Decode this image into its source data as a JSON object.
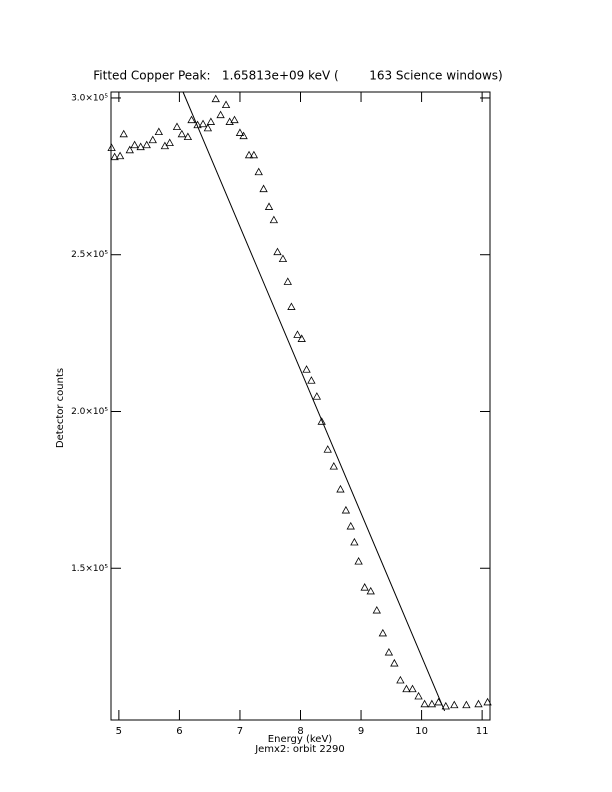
{
  "chart_data": {
    "type": "scatter",
    "title": "Fitted Copper Peak:   1.65813e+09 keV (        163 Science windows)",
    "xlabel": "Energy (keV)",
    "subtitle": "Jemx2: orbit 2290",
    "ylabel": "Detector counts",
    "xlim": [
      4.87,
      11.13
    ],
    "xticks": [
      5,
      6,
      7,
      8,
      9,
      10,
      11
    ],
    "ylim": [
      101600,
      301900
    ],
    "yticks": [
      {
        "value": 150000,
        "label": "1.5×10⁵"
      },
      {
        "value": 200000,
        "label": "2.0×10⁵"
      },
      {
        "value": 250000,
        "label": "2.5×10⁵"
      },
      {
        "value": 300000,
        "label": "3.0×10⁵"
      }
    ],
    "series": [
      {
        "type": "scatter",
        "marker": "triangle",
        "color": "#000000",
        "x": [
          4.88,
          4.93,
          5.02,
          5.08,
          5.18,
          5.26,
          5.36,
          5.46,
          5.56,
          5.66,
          5.76,
          5.84,
          5.96,
          6.04,
          6.14,
          6.2,
          6.3,
          6.39,
          6.47,
          6.52,
          6.6,
          6.68,
          6.77,
          6.83,
          6.91,
          7.0,
          7.06,
          7.15,
          7.23,
          7.31,
          7.39,
          7.48,
          7.56,
          7.62,
          7.71,
          7.79,
          7.85,
          7.95,
          8.02,
          8.1,
          8.18,
          8.27,
          8.35,
          8.45,
          8.55,
          8.66,
          8.75,
          8.83,
          8.89,
          8.96,
          9.06,
          9.16,
          9.26,
          9.36,
          9.46,
          9.55,
          9.65,
          9.75,
          9.85,
          9.95,
          10.05,
          10.17,
          10.28,
          10.4,
          10.54,
          10.74,
          10.94,
          11.09
        ],
        "values": [
          284100,
          281200,
          281500,
          288500,
          283400,
          285000,
          284400,
          285000,
          286600,
          289200,
          284700,
          285700,
          290800,
          288500,
          287600,
          293000,
          291400,
          291700,
          290400,
          292400,
          299700,
          294600,
          297800,
          292400,
          293000,
          288900,
          287900,
          281800,
          281800,
          276400,
          271000,
          265300,
          261100,
          250900,
          248700,
          241400,
          233400,
          224500,
          223200,
          213400,
          209900,
          204800,
          196800,
          187900,
          182500,
          175200,
          168500,
          163400,
          158300,
          152200,
          143900,
          142700,
          136600,
          129300,
          123200,
          119700,
          114300,
          111500,
          111500,
          109200,
          106700,
          106700,
          107300,
          106000,
          106400,
          106400,
          106700,
          107300
        ]
      },
      {
        "type": "line",
        "color": "#000000",
        "x": [
          6.06,
          10.38
        ],
        "values": [
          301900,
          104500
        ]
      }
    ]
  }
}
